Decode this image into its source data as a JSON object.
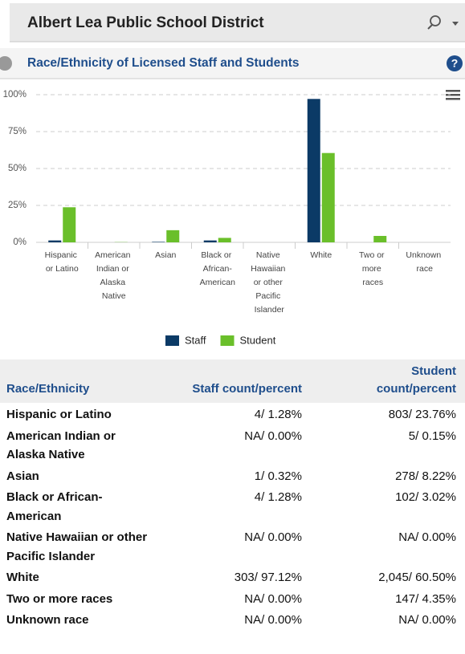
{
  "header": {
    "title": "Albert Lea Public School District"
  },
  "chart_data": {
    "type": "bar",
    "title": "Race/Ethnicity of Licensed Staff and Students",
    "categories": [
      "Hispanic or Latino",
      "American Indian or Alaska Native",
      "Asian",
      "Black or African-American",
      "Native Hawaiian or other Pacific Islander",
      "White",
      "Two or more races",
      "Unknown race"
    ],
    "series": [
      {
        "name": "Staff",
        "color": "#0b3a66",
        "values": [
          1.28,
          0,
          0.32,
          1.28,
          0,
          97.12,
          0,
          0
        ]
      },
      {
        "name": "Student",
        "color": "#6abf2a",
        "values": [
          23.76,
          0.15,
          8.22,
          3.02,
          0,
          60.5,
          4.35,
          0
        ]
      }
    ],
    "ylim": [
      0,
      100
    ],
    "yticks": [
      {
        "value": 0,
        "label": "0%"
      },
      {
        "value": 25,
        "label": "25%"
      },
      {
        "value": 50,
        "label": "50%"
      },
      {
        "value": 75,
        "label": "75%"
      },
      {
        "value": 100,
        "label": "100%"
      }
    ],
    "grid": true,
    "legend": "bottom"
  },
  "table": {
    "headers": [
      "Race/Ethnicity",
      "Staff count/percent",
      "Student count/percent"
    ],
    "rows": [
      [
        "Hispanic or Latino",
        "4/ 1.28%",
        "803/ 23.76%"
      ],
      [
        "American Indian or Alaska Native",
        "NA/ 0.00%",
        "5/ 0.15%"
      ],
      [
        "Asian",
        "1/ 0.32%",
        "278/ 8.22%"
      ],
      [
        "Black or African-American",
        "4/ 1.28%",
        "102/ 3.02%"
      ],
      [
        "Native Hawaiian or other Pacific Islander",
        "NA/ 0.00%",
        "NA/ 0.00%"
      ],
      [
        "White",
        "303/ 97.12%",
        "2,045/ 60.50%"
      ],
      [
        "Two or more races",
        "NA/ 0.00%",
        "147/ 4.35%"
      ],
      [
        "Unknown race",
        "NA/ 0.00%",
        "NA/ 0.00%"
      ]
    ]
  }
}
